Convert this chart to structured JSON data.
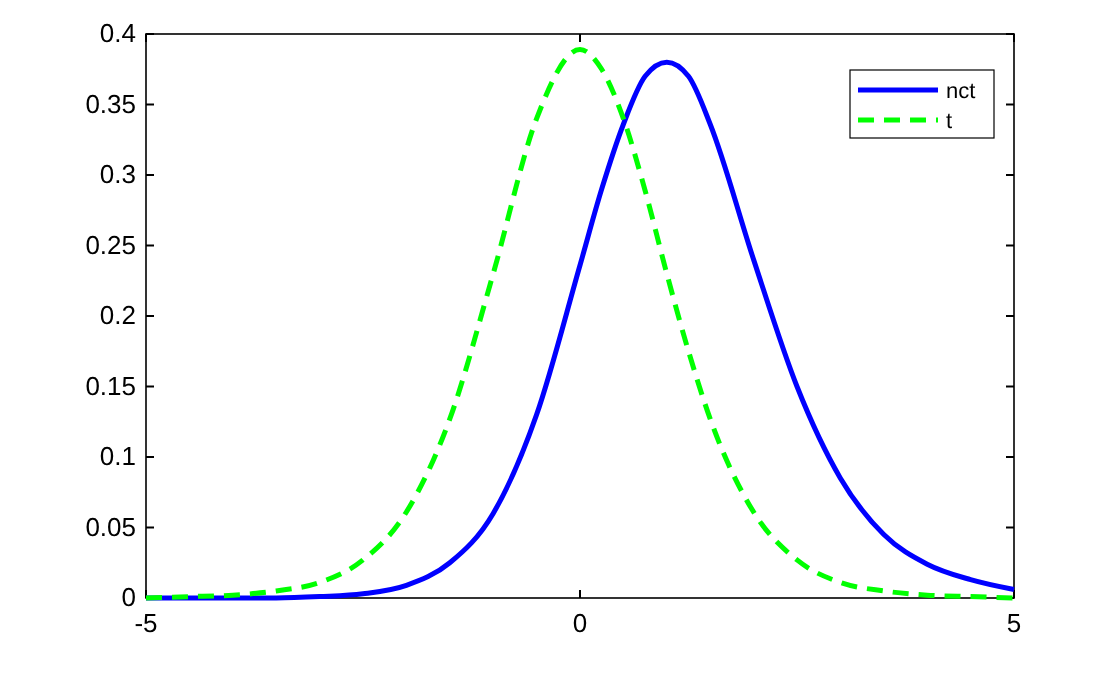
{
  "chart_data": {
    "type": "line",
    "x": [
      -5,
      -4.5,
      -4,
      -3.5,
      -3,
      -2.5,
      -2,
      -1.5,
      -1,
      -0.5,
      0,
      0.25,
      0.5,
      0.75,
      1,
      1.25,
      1.5,
      2,
      2.5,
      3,
      3.5,
      4,
      4.5,
      5
    ],
    "series": [
      {
        "name": "nct",
        "color": "#0000ff",
        "line_style": "solid",
        "values": [
          0,
          0,
          0,
          0,
          0.001,
          0.003,
          0.009,
          0.025,
          0.06,
          0.13,
          0.236,
          0.29,
          0.336,
          0.37,
          0.38,
          0.37,
          0.336,
          0.24,
          0.15,
          0.085,
          0.045,
          0.024,
          0.013,
          0.006
        ]
      },
      {
        "name": "t",
        "color": "#00ff00",
        "line_style": "dashed",
        "values": [
          0,
          0.001,
          0.002,
          0.005,
          0.011,
          0.027,
          0.061,
          0.127,
          0.23,
          0.34,
          0.389,
          0.375,
          0.34,
          0.289,
          0.23,
          0.175,
          0.127,
          0.061,
          0.027,
          0.011,
          0.005,
          0.002,
          0.001,
          0
        ]
      }
    ],
    "xlim": [
      -5,
      5
    ],
    "xticks": [
      -5,
      0,
      5
    ],
    "ylim": [
      0,
      0.4
    ],
    "yticks": [
      0,
      0.05,
      0.1,
      0.15,
      0.2,
      0.25,
      0.3,
      0.35,
      0.4
    ],
    "grid": false,
    "legend": "top right"
  }
}
